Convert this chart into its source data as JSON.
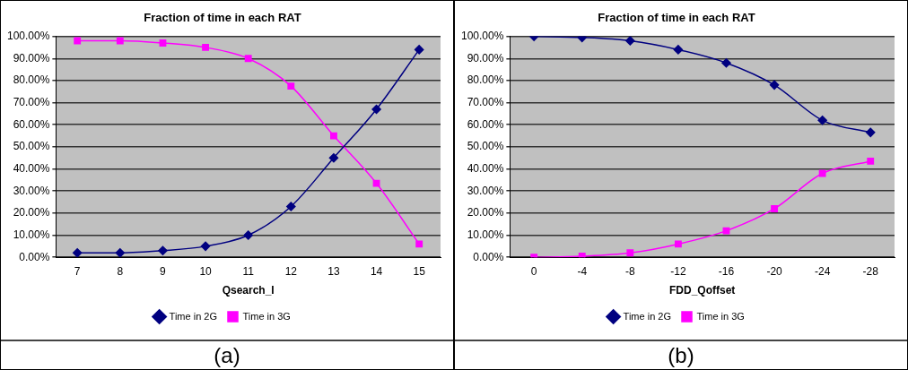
{
  "chart_data": [
    {
      "type": "line",
      "title": "Fraction of time in each RAT",
      "xlabel": "Qsearch_I",
      "categories": [
        "7",
        "8",
        "9",
        "10",
        "11",
        "12",
        "13",
        "14",
        "15"
      ],
      "series": [
        {
          "name": "Time in 2G",
          "color": "#000080",
          "marker": "diamond",
          "values": [
            2,
            2,
            3,
            5,
            10,
            23,
            45,
            67,
            94
          ]
        },
        {
          "name": "Time in 3G",
          "color": "#ff00ff",
          "marker": "square",
          "values": [
            98,
            98,
            97,
            95,
            90,
            77.5,
            55,
            33.5,
            6
          ]
        }
      ],
      "ylim": [
        0,
        100
      ],
      "yticks": [
        {
          "value": 0,
          "label": "0.00%"
        },
        {
          "value": 10,
          "label": "10.00%"
        },
        {
          "value": 20,
          "label": "20.00%"
        },
        {
          "value": 30,
          "label": "30.00%"
        },
        {
          "value": 40,
          "label": "40.00%"
        },
        {
          "value": 50,
          "label": "50.00%"
        },
        {
          "value": 60,
          "label": "60.00%"
        },
        {
          "value": 70,
          "label": "70.00%"
        },
        {
          "value": 80,
          "label": "80.00%"
        },
        {
          "value": 90,
          "label": "90.00%"
        },
        {
          "value": 100,
          "label": "100.00%"
        }
      ],
      "grid": "y",
      "legend": "bottom",
      "annotations": [
        "(a)"
      ]
    },
    {
      "type": "line",
      "title": "Fraction of time in each RAT",
      "xlabel": "FDD_Qoffset",
      "categories": [
        "0",
        "-4",
        "-8",
        "-12",
        "-16",
        "-20",
        "-24",
        "-28"
      ],
      "series": [
        {
          "name": "Time in 2G",
          "color": "#000080",
          "marker": "diamond",
          "values": [
            100,
            99.5,
            98,
            94,
            88,
            78,
            62,
            56.5
          ]
        },
        {
          "name": "Time in 3G",
          "color": "#ff00ff",
          "marker": "square",
          "values": [
            0,
            0.5,
            2,
            6,
            12,
            22,
            38,
            43.5
          ]
        }
      ],
      "ylim": [
        0,
        100
      ],
      "yticks": [
        {
          "value": 0,
          "label": "0.00%"
        },
        {
          "value": 10,
          "label": "10.00%"
        },
        {
          "value": 20,
          "label": "20.00%"
        },
        {
          "value": 30,
          "label": "30.00%"
        },
        {
          "value": 40,
          "label": "40.00%"
        },
        {
          "value": 50,
          "label": "50.00%"
        },
        {
          "value": 60,
          "label": "60.00%"
        },
        {
          "value": 70,
          "label": "70.00%"
        },
        {
          "value": 80,
          "label": "80.00%"
        },
        {
          "value": 90,
          "label": "90.00%"
        },
        {
          "value": 100,
          "label": "100.00%"
        }
      ],
      "grid": "y",
      "legend": "bottom",
      "annotations": [
        "(b)"
      ]
    }
  ]
}
